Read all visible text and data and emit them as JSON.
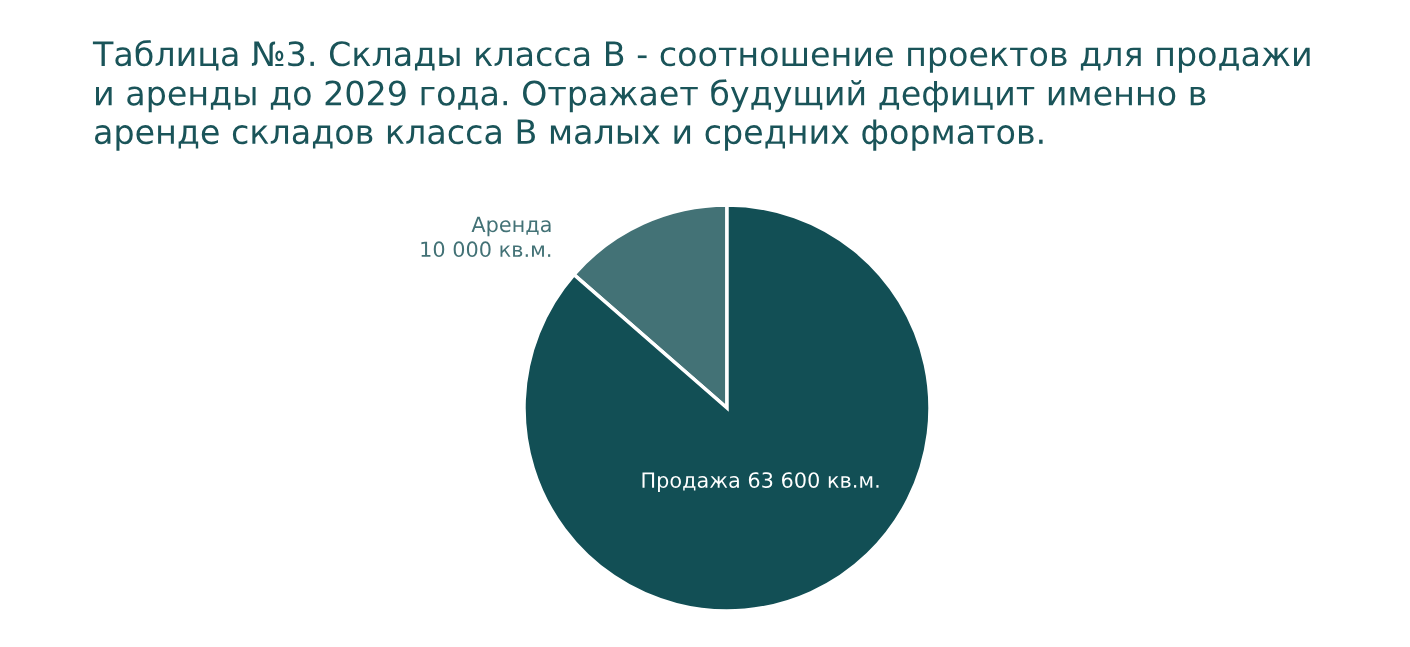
{
  "chart_data": {
    "type": "pie",
    "title": "Таблица №3. Склады класса В - соотношение проектов для продажи и аренды до 2029 года. Отражает будущий дефицит именно в аренде складов класса В малых и средних форматов.",
    "categories": [
      "Аренда",
      "Продажа"
    ],
    "values": [
      10000,
      63600
    ],
    "value_labels": [
      "10 000 кв.м.",
      "63 600 кв.м."
    ],
    "colors": [
      "#437276",
      "#124f55"
    ]
  }
}
